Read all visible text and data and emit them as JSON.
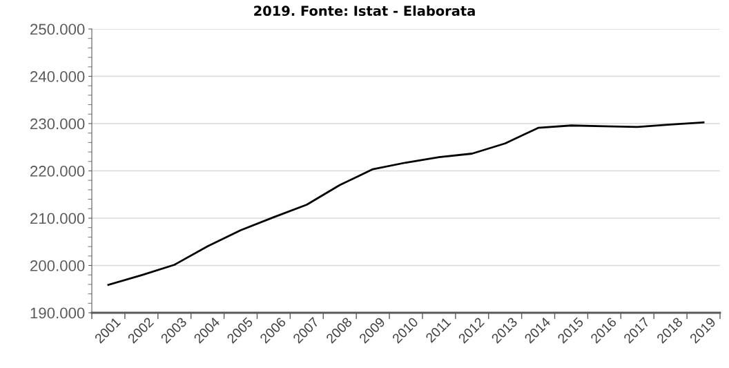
{
  "chart_data": {
    "type": "line",
    "title": "2019. Fonte: Istat - Elaborata",
    "categories": [
      "2001",
      "2002",
      "2003",
      "2004",
      "2005",
      "2006",
      "2007",
      "2008",
      "2009",
      "2010",
      "2011",
      "2012",
      "2013",
      "2014",
      "2015",
      "2016",
      "2017",
      "2018",
      "2019"
    ],
    "series": [
      {
        "color": "#000000",
        "values": [
          195900,
          197950,
          200150,
          204050,
          207450,
          210200,
          212850,
          217000,
          220350,
          221750,
          222900,
          223650,
          225800,
          229100,
          229600,
          229450,
          229300,
          229800,
          230250
        ]
      }
    ],
    "ylim": [
      190000,
      250000
    ],
    "yticks": [
      {
        "value": 190000,
        "label": "190.000"
      },
      {
        "value": 200000,
        "label": "200.000"
      },
      {
        "value": 210000,
        "label": "210.000"
      },
      {
        "value": 220000,
        "label": "220.000"
      },
      {
        "value": 230000,
        "label": "230.000"
      },
      {
        "value": 240000,
        "label": "240.000"
      },
      {
        "value": 250000,
        "label": "250.000"
      }
    ],
    "grid": "y",
    "marker": "none",
    "line_style": "solid"
  }
}
